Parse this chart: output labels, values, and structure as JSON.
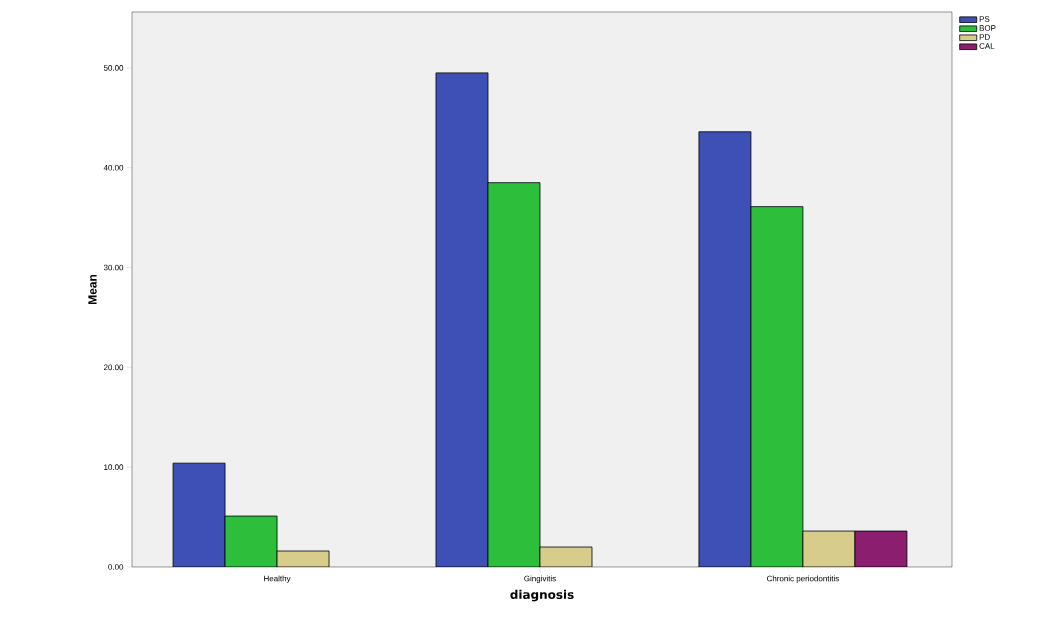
{
  "chart_data": {
    "type": "bar",
    "xlabel": "diagnosis",
    "ylabel": "Mean",
    "categories": [
      "Healthy",
      "Gingivitis",
      "Chronic periodontitis"
    ],
    "series": [
      {
        "name": "PS",
        "color": "#3e4fb5",
        "values": [
          10.4,
          49.5,
          43.6
        ]
      },
      {
        "name": "BOP",
        "color": "#2dbe3c",
        "values": [
          5.1,
          38.5,
          36.1
        ]
      },
      {
        "name": "PD",
        "color": "#d8cc8c",
        "values": [
          1.6,
          2.0,
          3.6
        ]
      },
      {
        "name": "CAL",
        "color": "#8b1e6e",
        "values": [
          null,
          null,
          3.6
        ]
      }
    ],
    "ylim": [
      0,
      55.6
    ],
    "yticks": [
      {
        "value": 0,
        "label": "0.00"
      },
      {
        "value": 10,
        "label": "10.00"
      },
      {
        "value": 20,
        "label": "20.00"
      },
      {
        "value": 30,
        "label": "30.00"
      },
      {
        "value": 40,
        "label": "40.00"
      },
      {
        "value": 50,
        "label": "50.00"
      }
    ],
    "legend": "top right",
    "grid": false
  }
}
